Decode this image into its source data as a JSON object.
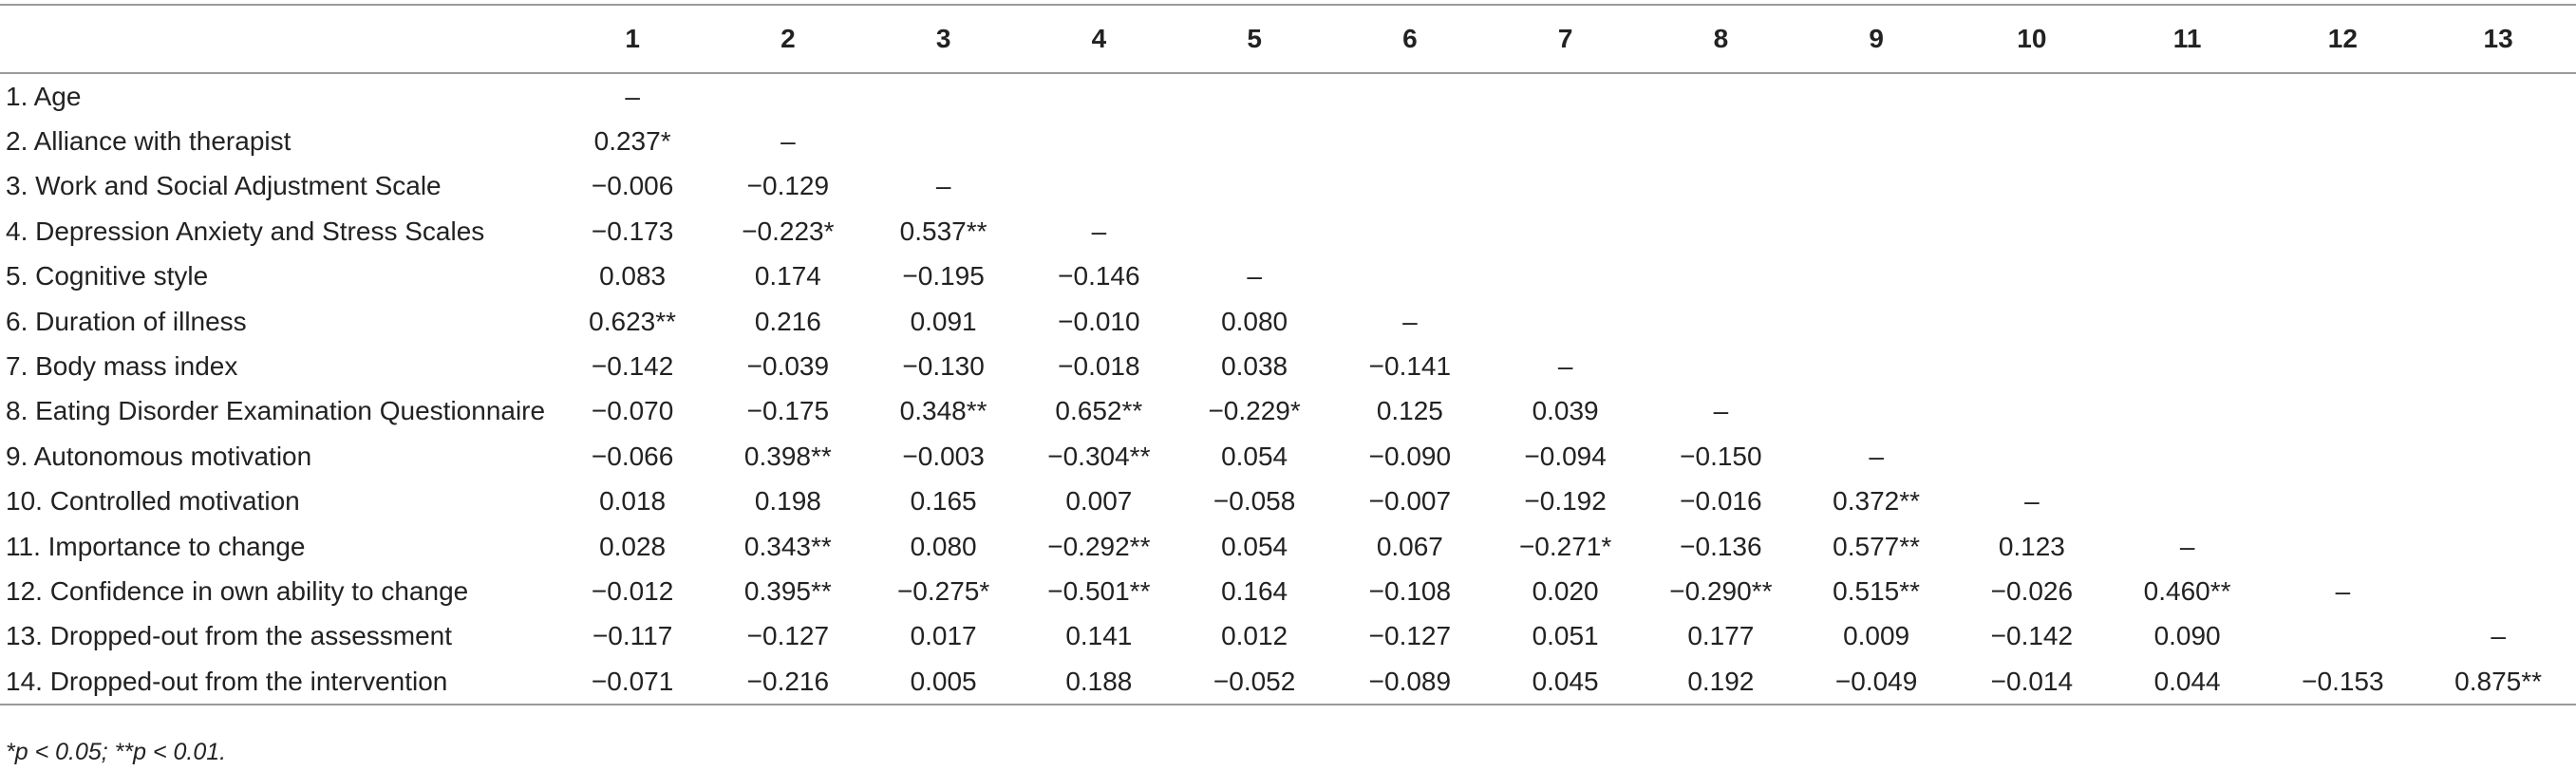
{
  "columns": [
    "",
    "1",
    "2",
    "3",
    "4",
    "5",
    "6",
    "7",
    "8",
    "9",
    "10",
    "11",
    "12",
    "13"
  ],
  "rows": [
    {
      "label": "1. Age",
      "cells": [
        "–",
        "",
        "",
        "",
        "",
        "",
        "",
        "",
        "",
        "",
        "",
        "",
        ""
      ]
    },
    {
      "label": "2. Alliance with therapist",
      "cells": [
        "0.237*",
        "–",
        "",
        "",
        "",
        "",
        "",
        "",
        "",
        "",
        "",
        "",
        ""
      ]
    },
    {
      "label": "3. Work and Social Adjustment Scale",
      "cells": [
        "−0.006",
        "−0.129",
        "–",
        "",
        "",
        "",
        "",
        "",
        "",
        "",
        "",
        "",
        ""
      ]
    },
    {
      "label": "4. Depression Anxiety and Stress Scales",
      "cells": [
        "−0.173",
        "−0.223*",
        "0.537**",
        "–",
        "",
        "",
        "",
        "",
        "",
        "",
        "",
        "",
        ""
      ]
    },
    {
      "label": "5. Cognitive style",
      "cells": [
        "0.083",
        "0.174",
        "−0.195",
        "−0.146",
        "–",
        "",
        "",
        "",
        "",
        "",
        "",
        "",
        ""
      ]
    },
    {
      "label": "6. Duration of illness",
      "cells": [
        "0.623**",
        "0.216",
        "0.091",
        "−0.010",
        "0.080",
        "–",
        "",
        "",
        "",
        "",
        "",
        "",
        ""
      ]
    },
    {
      "label": "7. Body mass index",
      "cells": [
        "−0.142",
        "−0.039",
        "−0.130",
        "−0.018",
        "0.038",
        "−0.141",
        "–",
        "",
        "",
        "",
        "",
        "",
        ""
      ]
    },
    {
      "label": "8. Eating Disorder Examination Questionnaire",
      "cells": [
        "−0.070",
        "−0.175",
        "0.348**",
        "0.652**",
        "−0.229*",
        "0.125",
        "0.039",
        "–",
        "",
        "",
        "",
        "",
        ""
      ]
    },
    {
      "label": "9. Autonomous motivation",
      "cells": [
        "−0.066",
        "0.398**",
        "−0.003",
        "−0.304**",
        "0.054",
        "−0.090",
        "−0.094",
        "−0.150",
        "–",
        "",
        "",
        "",
        ""
      ]
    },
    {
      "label": "10. Controlled motivation",
      "cells": [
        "0.018",
        "0.198",
        "0.165",
        "0.007",
        "−0.058",
        "−0.007",
        "−0.192",
        "−0.016",
        "0.372**",
        "–",
        "",
        "",
        ""
      ]
    },
    {
      "label": "11. Importance to change",
      "cells": [
        "0.028",
        "0.343**",
        "0.080",
        "−0.292**",
        "0.054",
        "0.067",
        "−0.271*",
        "−0.136",
        "0.577**",
        "0.123",
        "–",
        "",
        ""
      ]
    },
    {
      "label": "12. Confidence in own ability to change",
      "cells": [
        "−0.012",
        "0.395**",
        "−0.275*",
        "−0.501**",
        "0.164",
        "−0.108",
        "0.020",
        "−0.290**",
        "0.515**",
        "−0.026",
        "0.460**",
        "–",
        ""
      ]
    },
    {
      "label": "13. Dropped-out from the assessment",
      "cells": [
        "−0.117",
        "−0.127",
        "0.017",
        "0.141",
        "0.012",
        "−0.127",
        "0.051",
        "0.177",
        "0.009",
        "−0.142",
        "0.090",
        "",
        "–"
      ]
    },
    {
      "label": "14. Dropped-out from the intervention",
      "cells": [
        "−0.071",
        "−0.216",
        "0.005",
        "0.188",
        "−0.052",
        "−0.089",
        "0.045",
        "0.192",
        "−0.049",
        "−0.014",
        "0.044",
        "−0.153",
        "0.875**"
      ]
    }
  ],
  "footnote": "*p < 0.05; **p < 0.01."
}
